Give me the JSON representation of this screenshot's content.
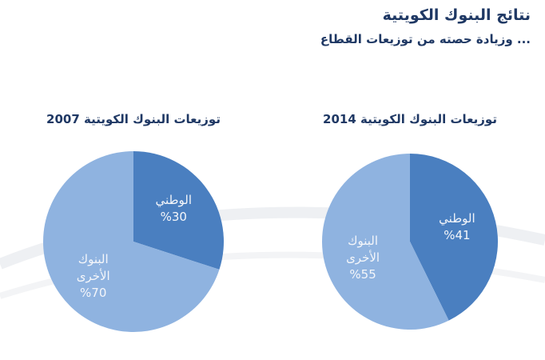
{
  "header": {
    "title": "نتائج البنوك الكويتية",
    "subtitle": "... وزيادة حصته من توزيعات القطاع"
  },
  "chart_data": [
    {
      "type": "pie",
      "title": "توزيعات البنوك الكويتية 2014",
      "categories": [
        "الوطني",
        "البنوك الأخرى"
      ],
      "values": [
        41,
        55
      ],
      "value_labels": [
        "%41",
        "%55"
      ],
      "colors": [
        "#4a7fc0",
        "#8fb3e0"
      ]
    },
    {
      "type": "pie",
      "title": "توزيعات البنوك الكويتية 2007",
      "categories": [
        "الوطني",
        "البنوك الأخرى"
      ],
      "values": [
        30,
        70
      ],
      "value_labels": [
        "%30",
        "%70"
      ],
      "colors": [
        "#4a7fc0",
        "#8fb3e0"
      ]
    }
  ]
}
